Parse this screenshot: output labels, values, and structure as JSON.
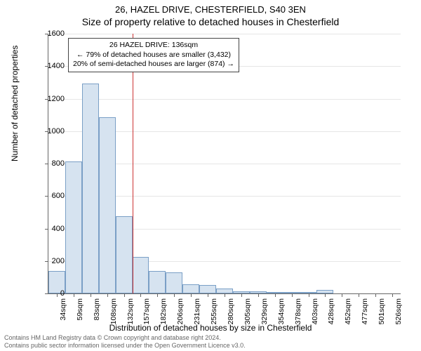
{
  "header": {
    "title1": "26, HAZEL DRIVE, CHESTERFIELD, S40 3EN",
    "title2": "Size of property relative to detached houses in Chesterfield"
  },
  "chart": {
    "type": "histogram",
    "ylim": [
      0,
      1600
    ],
    "ytick_step": 200,
    "ylabel": "Number of detached properties",
    "xlabel": "Distribution of detached houses by size in Chesterfield",
    "x_categories": [
      "34sqm",
      "59sqm",
      "83sqm",
      "108sqm",
      "132sqm",
      "157sqm",
      "182sqm",
      "206sqm",
      "231sqm",
      "255sqm",
      "280sqm",
      "305sqm",
      "329sqm",
      "354sqm",
      "378sqm",
      "403sqm",
      "428sqm",
      "452sqm",
      "477sqm",
      "501sqm",
      "526sqm"
    ],
    "bar_values": [
      140,
      815,
      1295,
      1085,
      475,
      225,
      140,
      130,
      55,
      50,
      30,
      15,
      15,
      10,
      8,
      8,
      20,
      0,
      0,
      0,
      0
    ],
    "bar_fill": "#d6e3f0",
    "bar_stroke": "#7a9fc6",
    "marker_line_color": "#cc3333",
    "marker_bar_index": 4,
    "annotation": {
      "line1": "26 HAZEL DRIVE: 136sqm",
      "line2": "← 79% of detached houses are smaller (3,432)",
      "line3": "20% of semi-detached houses are larger (874) →"
    },
    "grid_color": "#e6e6e6",
    "axis_color": "#666666",
    "background_color": "#ffffff",
    "bar_width_ratio": 1.0
  },
  "footer": {
    "line1": "Contains HM Land Registry data © Crown copyright and database right 2024.",
    "line2": "Contains public sector information licensed under the Open Government Licence v3.0."
  }
}
